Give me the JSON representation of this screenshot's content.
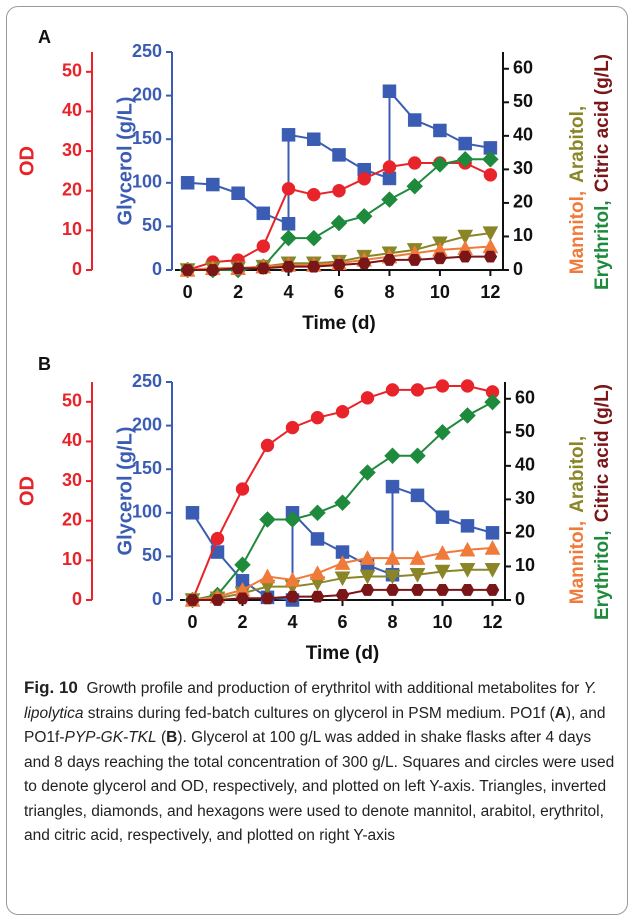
{
  "chart_data": [
    {
      "type": "line",
      "panel_label": "A",
      "x_label": "Time (d)",
      "xlim": [
        -0.5,
        12.5
      ],
      "xticks": [
        0,
        2,
        4,
        6,
        8,
        10,
        12
      ],
      "x": [
        0,
        1,
        2,
        3,
        4,
        5,
        6,
        7,
        8,
        9,
        10,
        11,
        12
      ],
      "axes": [
        {
          "side": "left",
          "label": "OD",
          "color": "#e8232a",
          "lim": [
            0,
            55
          ],
          "ticks": [
            0,
            10,
            20,
            30,
            40,
            50
          ]
        },
        {
          "side": "left",
          "label": "Glycerol (g/L)",
          "color": "#3a5cb3",
          "lim": [
            0,
            250
          ],
          "ticks": [
            0,
            50,
            100,
            150,
            200,
            250
          ]
        },
        {
          "side": "right",
          "color": "#111111",
          "lim": [
            0,
            65
          ],
          "ticks": [
            0,
            10,
            20,
            30,
            40,
            50,
            60
          ],
          "label_lines": [
            [
              {
                "text": "Mannitol,",
                "color": "#f07a3a"
              },
              {
                "text": "Arabitol,",
                "color": "#8a8628"
              }
            ],
            [
              {
                "text": "Erythritol,",
                "color": "#1e8a3c"
              },
              {
                "text": "Citric acid (g/L)",
                "color": "#7a1518"
              }
            ]
          ]
        }
      ],
      "series": [
        {
          "axis": 1,
          "marker": "square",
          "color": "#3a5cb3",
          "x": [
            0,
            1,
            2,
            3,
            4,
            4,
            5,
            6,
            7,
            8,
            8,
            9,
            10,
            11,
            12
          ],
          "values": [
            100,
            98,
            88,
            65,
            53,
            155,
            150,
            132,
            115,
            105,
            205,
            172,
            160,
            145,
            140
          ]
        },
        {
          "axis": 0,
          "marker": "circle",
          "color": "#e8232a",
          "values": [
            0,
            2,
            2.5,
            6,
            20.5,
            19,
            20,
            23,
            26,
            27,
            27,
            27,
            24
          ]
        },
        {
          "axis": 2,
          "marker": "diamond",
          "color": "#1e8a3c",
          "values": [
            0,
            0,
            0,
            1,
            9.5,
            9.5,
            14,
            16,
            21,
            25,
            31.5,
            33,
            33
          ]
        },
        {
          "axis": 2,
          "marker": "triangle-down",
          "color": "#8a8628",
          "values": [
            0,
            0.5,
            0.5,
            1,
            2,
            2,
            2.5,
            4,
            5,
            6,
            8,
            10,
            11
          ]
        },
        {
          "axis": 2,
          "marker": "triangle",
          "color": "#f07a3a",
          "values": [
            0,
            0.5,
            0.5,
            1,
            1.5,
            1.5,
            2,
            3,
            4,
            5,
            6,
            6.5,
            7
          ]
        },
        {
          "axis": 2,
          "marker": "hexagon",
          "color": "#7a1518",
          "values": [
            0,
            0,
            0.5,
            0.5,
            1,
            1,
            1.5,
            2,
            3,
            3,
            3.5,
            4,
            4
          ]
        }
      ]
    },
    {
      "type": "line",
      "panel_label": "B",
      "x_label": "Time (d)",
      "xlim": [
        -0.5,
        12.5
      ],
      "xticks": [
        0,
        2,
        4,
        6,
        8,
        10,
        12
      ],
      "x": [
        0,
        1,
        2,
        3,
        4,
        5,
        6,
        7,
        8,
        9,
        10,
        11,
        12
      ],
      "axes": [
        {
          "side": "left",
          "label": "OD",
          "color": "#e8232a",
          "lim": [
            0,
            55
          ],
          "ticks": [
            0,
            10,
            20,
            30,
            40,
            50
          ]
        },
        {
          "side": "left",
          "label": "Glycerol (g/L)",
          "color": "#3a5cb3",
          "lim": [
            0,
            250
          ],
          "ticks": [
            0,
            50,
            100,
            150,
            200,
            250
          ]
        },
        {
          "side": "right",
          "color": "#111111",
          "lim": [
            0,
            65
          ],
          "ticks": [
            0,
            10,
            20,
            30,
            40,
            50,
            60
          ],
          "label_lines": [
            [
              {
                "text": "Mannitol,",
                "color": "#f07a3a"
              },
              {
                "text": "Arabitol,",
                "color": "#8a8628"
              }
            ],
            [
              {
                "text": "Erythritol,",
                "color": "#1e8a3c"
              },
              {
                "text": "Citric acid (g/L)",
                "color": "#7a1518"
              }
            ]
          ]
        }
      ],
      "series": [
        {
          "axis": 1,
          "marker": "square",
          "color": "#3a5cb3",
          "x": [
            0,
            1,
            2,
            3,
            4,
            4,
            5,
            6,
            7,
            8,
            8,
            9,
            10,
            11,
            12
          ],
          "values": [
            100,
            55,
            22,
            3,
            0,
            100,
            70,
            55,
            40,
            29,
            130,
            120,
            95,
            85,
            77
          ]
        },
        {
          "axis": 0,
          "marker": "circle",
          "color": "#e8232a",
          "values": [
            0,
            15.5,
            28,
            39,
            43.5,
            46,
            47.5,
            51,
            53,
            53,
            54,
            54,
            52.5
          ]
        },
        {
          "axis": 2,
          "marker": "diamond",
          "color": "#1e8a3c",
          "values": [
            0,
            1.5,
            10.5,
            24,
            24,
            26,
            29,
            38,
            43,
            43,
            50,
            55,
            59
          ]
        },
        {
          "axis": 2,
          "marker": "triangle-down",
          "color": "#8a8628",
          "values": [
            0,
            0.5,
            2,
            4,
            4,
            5,
            6.5,
            7,
            7,
            7.5,
            8.5,
            9,
            9
          ]
        },
        {
          "axis": 2,
          "marker": "triangle",
          "color": "#f07a3a",
          "values": [
            0,
            1,
            3,
            7,
            6,
            8,
            11,
            12.5,
            12.5,
            12.5,
            14,
            15,
            15.5
          ]
        },
        {
          "axis": 2,
          "marker": "hexagon",
          "color": "#7a1518",
          "values": [
            0,
            0,
            0.5,
            0.5,
            1,
            1,
            1.5,
            3,
            3,
            3,
            3,
            3,
            3
          ]
        }
      ]
    }
  ],
  "caption": {
    "segments": [
      {
        "text": "Fig. 10",
        "style": "bold"
      },
      {
        "text": "  Growth profile and production of erythritol with additional metabolites for ",
        "style": "normal"
      },
      {
        "text": "Y. lipolytica",
        "style": "italic"
      },
      {
        "text": " strains during fed-batch cultures on glycerol in PSM medium. PO1f (",
        "style": "normal"
      },
      {
        "text": "A",
        "style": "bold"
      },
      {
        "text": "), and PO1f-",
        "style": "normal"
      },
      {
        "text": "PYP-GK-TKL",
        "style": "italic"
      },
      {
        "text": " (",
        "style": "normal"
      },
      {
        "text": "B",
        "style": "bold"
      },
      {
        "text": "). Glycerol at 100 g/L was added in shake flasks after 4 days and 8 days reaching the total concentration of 300 g/L. Squares and circles were used to denote glycerol and OD, respectively, and plotted on left Y-axis. Triangles, inverted triangles, diamonds, and hexagons were used to denote mannitol, arabitol, erythritol, and citric acid, respectively, and plotted on right Y-axis",
        "style": "normal"
      }
    ]
  }
}
